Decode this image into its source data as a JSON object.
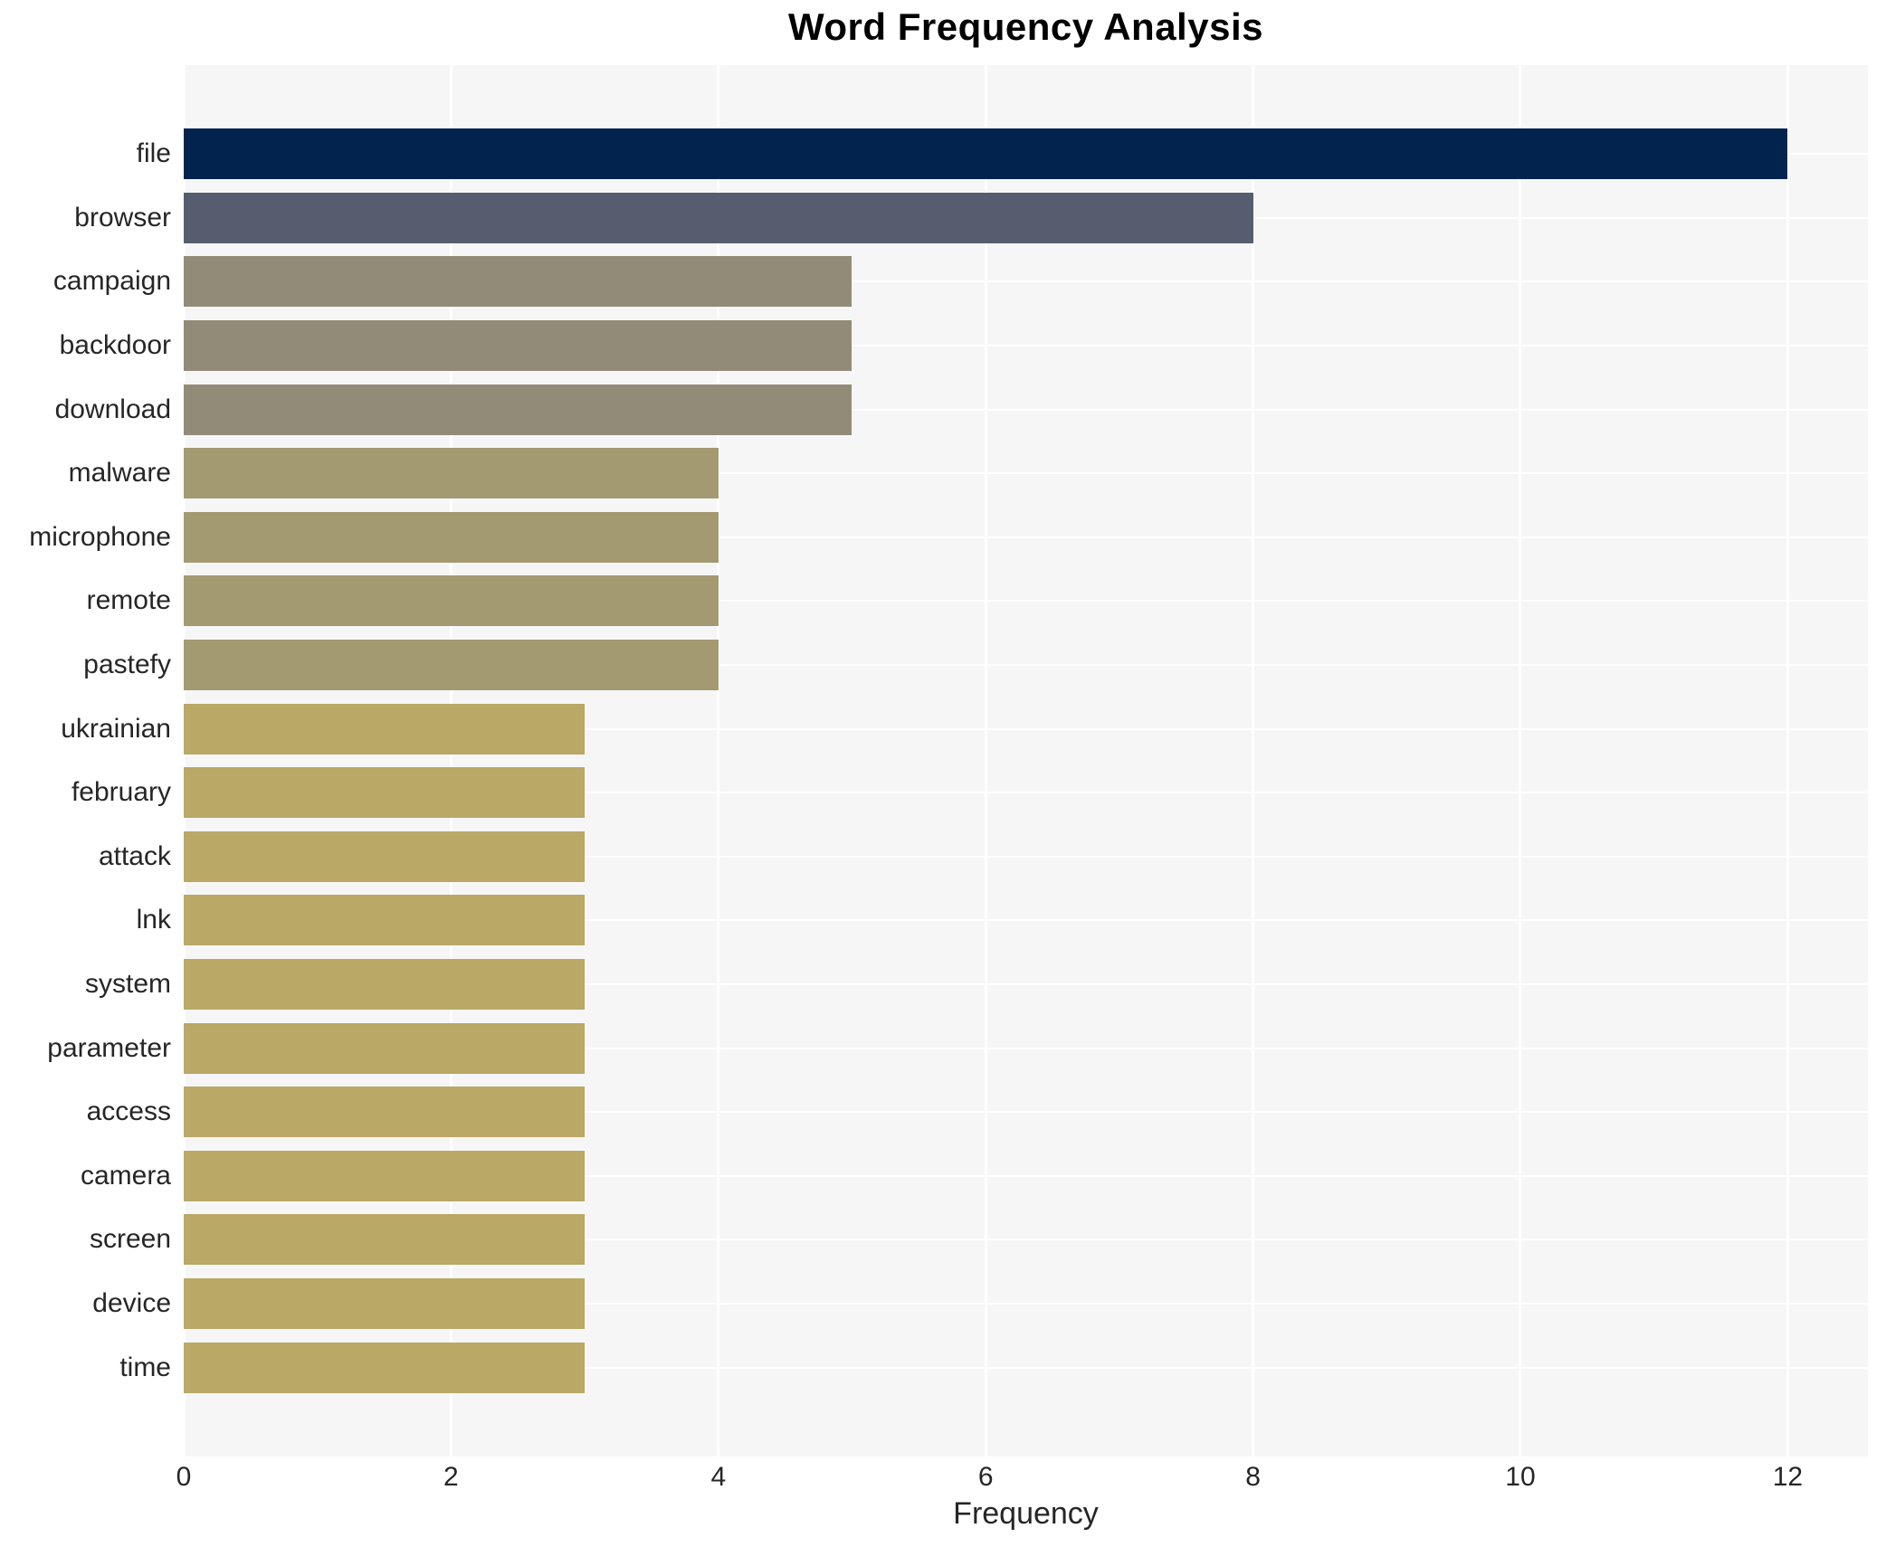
{
  "chart_data": {
    "type": "bar",
    "orientation": "horizontal",
    "title": "Word Frequency Analysis",
    "xlabel": "Frequency",
    "ylabel": "",
    "xlim": [
      0,
      12.6
    ],
    "xticks": [
      0,
      2,
      4,
      6,
      8,
      10,
      12
    ],
    "grid": "white gridlines on light gray plot background, behind bars",
    "legend_position": "none",
    "categories": [
      "file",
      "browser",
      "campaign",
      "backdoor",
      "download",
      "malware",
      "microphone",
      "remote",
      "pastefy",
      "ukrainian",
      "february",
      "attack",
      "lnk",
      "system",
      "parameter",
      "access",
      "camera",
      "screen",
      "device",
      "time"
    ],
    "values": [
      12,
      8,
      5,
      5,
      5,
      4,
      4,
      4,
      4,
      3,
      3,
      3,
      3,
      3,
      3,
      3,
      3,
      3,
      3,
      3
    ],
    "bar_colors": [
      "#01234e",
      "#565d6f",
      "#928b77",
      "#928b77",
      "#928b77",
      "#a39a72",
      "#a39a72",
      "#a39a72",
      "#a39a72",
      "#b9a866",
      "#b9a866",
      "#b9a866",
      "#b9a866",
      "#b9a866",
      "#b9a866",
      "#b9a866",
      "#b9a866",
      "#b9a866",
      "#b9a866",
      "#b9a866"
    ]
  },
  "colors": {
    "plot_background": "#f6f6f7",
    "figure_background": "#ffffff",
    "gridline": "#ffffff",
    "text": "#262626",
    "title_text": "#000000"
  }
}
